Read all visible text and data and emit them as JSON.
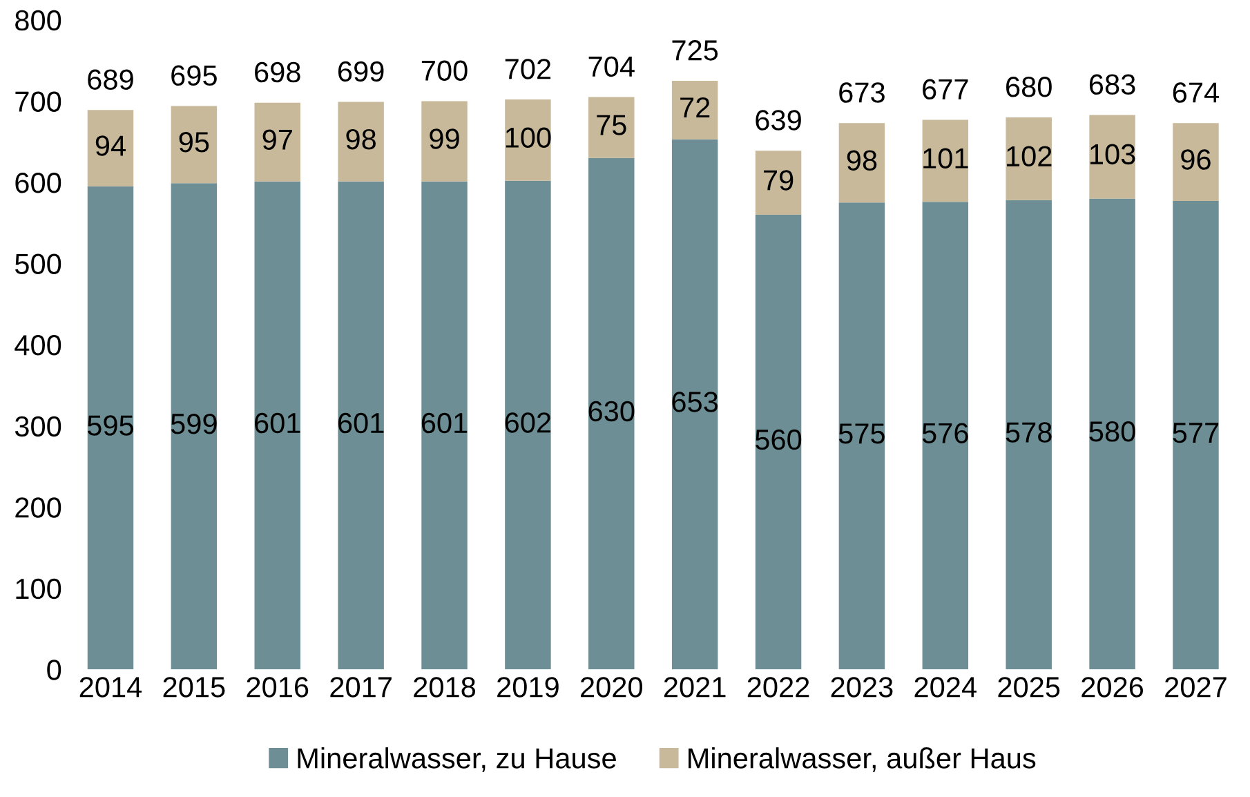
{
  "chart_data": {
    "type": "bar",
    "stacked": true,
    "categories": [
      "2014",
      "2015",
      "2016",
      "2017",
      "2018",
      "2019",
      "2020",
      "2021",
      "2022",
      "2023",
      "2024",
      "2025",
      "2026",
      "2027"
    ],
    "series": [
      {
        "name": "Mineralwasser, zu Hause",
        "color": "#6d8e94",
        "values": [
          595,
          599,
          601,
          601,
          601,
          602,
          630,
          653,
          560,
          575,
          576,
          578,
          580,
          577
        ]
      },
      {
        "name": "Mineralwasser, außer Haus",
        "color": "#c8b99b",
        "values": [
          94,
          95,
          97,
          98,
          99,
          100,
          75,
          72,
          79,
          98,
          101,
          102,
          103,
          96
        ]
      }
    ],
    "totals": [
      "689",
      "695",
      "698",
      "699",
      "700",
      "702",
      "704",
      "725",
      "639",
      "673",
      "677",
      "680",
      "683",
      "674"
    ],
    "data_labels": true,
    "ylim": [
      0,
      800
    ],
    "yticks": [
      0,
      100,
      200,
      300,
      400,
      500,
      600,
      700,
      800
    ],
    "grid": false,
    "legend": "bottom"
  }
}
